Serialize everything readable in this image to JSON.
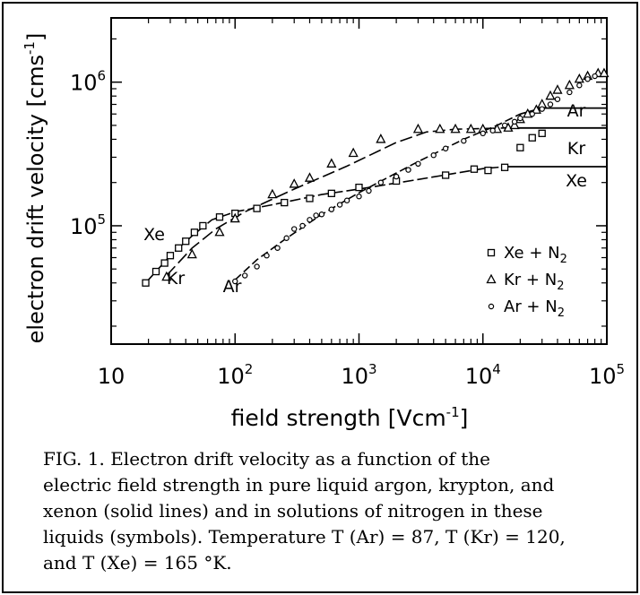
{
  "chart_data": {
    "type": "line",
    "x_scale": "log",
    "y_scale": "log",
    "xlabel": "field strength [Vcm",
    "xlabel_sup": "-1",
    "xlabel_end": "]",
    "ylabel": "electron drift velocity [cms",
    "ylabel_sup": "-1",
    "ylabel_end": "]",
    "xlim": [
      10,
      100000
    ],
    "ylim": [
      15000,
      2800000
    ],
    "x_ticks": [
      {
        "value": 10,
        "base": "10",
        "exp": ""
      },
      {
        "value": 100,
        "base": "10",
        "exp": "2"
      },
      {
        "value": 1000,
        "base": "10",
        "exp": "3"
      },
      {
        "value": 10000,
        "base": "10",
        "exp": "4"
      },
      {
        "value": 100000,
        "base": "10",
        "exp": "5"
      }
    ],
    "y_ticks": [
      {
        "value": 100000,
        "base": "10",
        "exp": "5"
      },
      {
        "value": 1000000,
        "base": "10",
        "exp": "6"
      }
    ],
    "series": [
      {
        "name": "Xe",
        "symbol_label": "Xe + N",
        "symbol_sub": "2",
        "marker": "square",
        "curve_label": "Xe",
        "end_label": "Xe",
        "line": [
          [
            19,
            40000
          ],
          [
            30,
            62000
          ],
          [
            45,
            85000
          ],
          [
            65,
            110000
          ],
          [
            100,
            125000
          ],
          [
            200,
            140000
          ],
          [
            500,
            165000
          ],
          [
            1000,
            180000
          ],
          [
            3000,
            210000
          ],
          [
            10000,
            250000
          ],
          [
            15000,
            258000
          ],
          [
            100000,
            258000
          ]
        ],
        "points": [
          [
            19,
            40000
          ],
          [
            23,
            48000
          ],
          [
            27,
            55000
          ],
          [
            30,
            62000
          ],
          [
            35,
            70000
          ],
          [
            40,
            78000
          ],
          [
            47,
            90000
          ],
          [
            55,
            100000
          ],
          [
            75,
            115000
          ],
          [
            100,
            122000
          ],
          [
            150,
            132000
          ],
          [
            250,
            145000
          ],
          [
            400,
            155000
          ],
          [
            600,
            168000
          ],
          [
            1000,
            185000
          ],
          [
            2000,
            205000
          ],
          [
            5000,
            225000
          ],
          [
            8500,
            248000
          ],
          [
            11000,
            243000
          ],
          [
            15000,
            255000
          ],
          [
            20000,
            350000
          ],
          [
            25000,
            410000
          ],
          [
            30000,
            440000
          ]
        ]
      },
      {
        "name": "Kr",
        "symbol_label": "Kr + N",
        "symbol_sub": "2",
        "marker": "triangle",
        "curve_label": "Kr",
        "end_label": "Kr",
        "line": [
          [
            28,
            45000
          ],
          [
            45,
            70000
          ],
          [
            70,
            95000
          ],
          [
            120,
            125000
          ],
          [
            300,
            180000
          ],
          [
            800,
            260000
          ],
          [
            2000,
            380000
          ],
          [
            3500,
            450000
          ],
          [
            6000,
            470000
          ],
          [
            15000,
            480000
          ],
          [
            100000,
            480000
          ]
        ],
        "points": [
          [
            28,
            44000
          ],
          [
            45,
            63000
          ],
          [
            75,
            90000
          ],
          [
            100,
            112000
          ],
          [
            200,
            165000
          ],
          [
            300,
            195000
          ],
          [
            400,
            215000
          ],
          [
            600,
            270000
          ],
          [
            900,
            320000
          ],
          [
            1500,
            400000
          ],
          [
            3000,
            470000
          ],
          [
            4500,
            470000
          ],
          [
            6000,
            470000
          ],
          [
            8000,
            470000
          ],
          [
            10000,
            470000
          ],
          [
            13000,
            470000
          ],
          [
            16000,
            480000
          ],
          [
            18000,
            500000
          ],
          [
            20000,
            550000
          ],
          [
            23000,
            600000
          ],
          [
            27000,
            640000
          ],
          [
            30000,
            700000
          ],
          [
            35000,
            800000
          ],
          [
            40000,
            880000
          ],
          [
            50000,
            950000
          ],
          [
            60000,
            1050000
          ],
          [
            70000,
            1100000
          ],
          [
            85000,
            1150000
          ],
          [
            95000,
            1150000
          ]
        ]
      },
      {
        "name": "Ar",
        "symbol_label": "Ar + N",
        "symbol_sub": "2",
        "marker": "circle",
        "curve_label": "Ar",
        "end_label": "Ar",
        "line": [
          [
            100,
            42000
          ],
          [
            150,
            58000
          ],
          [
            250,
            80000
          ],
          [
            500,
            120000
          ],
          [
            1000,
            170000
          ],
          [
            3000,
            280000
          ],
          [
            7000,
            400000
          ],
          [
            13000,
            500000
          ],
          [
            20000,
            600000
          ],
          [
            30000,
            660000
          ],
          [
            100000,
            660000
          ]
        ],
        "points": [
          [
            100,
            41000
          ],
          [
            120,
            45000
          ],
          [
            150,
            52000
          ],
          [
            180,
            62000
          ],
          [
            220,
            70000
          ],
          [
            260,
            82000
          ],
          [
            300,
            95000
          ],
          [
            350,
            100000
          ],
          [
            400,
            110000
          ],
          [
            450,
            118000
          ],
          [
            500,
            120000
          ],
          [
            600,
            130000
          ],
          [
            700,
            140000
          ],
          [
            800,
            150000
          ],
          [
            1000,
            160000
          ],
          [
            1200,
            175000
          ],
          [
            1500,
            200000
          ],
          [
            2000,
            220000
          ],
          [
            2500,
            245000
          ],
          [
            3000,
            270000
          ],
          [
            4000,
            310000
          ],
          [
            5000,
            345000
          ],
          [
            7000,
            390000
          ],
          [
            10000,
            440000
          ],
          [
            12000,
            460000
          ],
          [
            15000,
            500000
          ],
          [
            18000,
            530000
          ],
          [
            20000,
            560000
          ],
          [
            25000,
            600000
          ],
          [
            30000,
            650000
          ],
          [
            35000,
            700000
          ],
          [
            40000,
            760000
          ],
          [
            50000,
            850000
          ],
          [
            60000,
            950000
          ],
          [
            70000,
            1050000
          ],
          [
            80000,
            1100000
          ]
        ]
      }
    ]
  },
  "caption": {
    "lines": [
      "FIG. 1.  Electron drift velocity as a function of the",
      "electric field strength in pure liquid argon, krypton, and",
      "xenon (solid lines) and in solutions of nitrogen in these",
      "liquids (symbols).  Temperature T (Ar) = 87,  T (Kr) = 120,",
      "and T (Xe) = 165 °K."
    ]
  }
}
